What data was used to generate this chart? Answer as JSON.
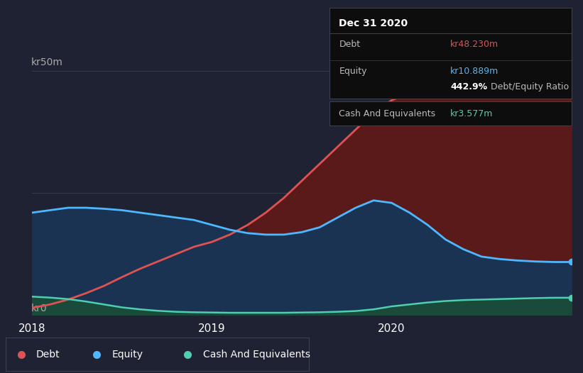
{
  "bg_color": "#1e2233",
  "grid_color": "#353a50",
  "tooltip_bg": "#0d0d0d",
  "tooltip_border": "#3a3f55",
  "legend_border": "#3a3f55",
  "ylabel_50": "kr50m",
  "ylabel_0": "kr0",
  "x_ticks_labels": [
    "2018",
    "2019",
    "2020"
  ],
  "x_ticks_pos": [
    0,
    1,
    2
  ],
  "debt_color": "#e05252",
  "equity_color": "#4db8ff",
  "cash_color": "#4dcfb0",
  "debt_fill": "#5a1a1a",
  "equity_fill": "#1a3352",
  "cash_fill": "#1a4a3a",
  "tooltip_title": "Dec 31 2020",
  "tooltip_debt_label": "Debt",
  "tooltip_debt_val": "kr48.230m",
  "tooltip_equity_label": "Equity",
  "tooltip_equity_val": "kr10.889m",
  "tooltip_ratio_pct": "442.9%",
  "tooltip_ratio_label": "Debt/Equity Ratio",
  "tooltip_cash_label": "Cash And Equivalents",
  "tooltip_cash_val": "kr3.577m",
  "legend_debt": "Debt",
  "legend_equity": "Equity",
  "legend_cash": "Cash And Equivalents",
  "x_data": [
    0.0,
    0.1,
    0.2,
    0.3,
    0.4,
    0.5,
    0.6,
    0.7,
    0.8,
    0.9,
    1.0,
    1.1,
    1.2,
    1.3,
    1.4,
    1.5,
    1.6,
    1.7,
    1.8,
    1.9,
    2.0,
    2.1,
    2.2,
    2.3,
    2.4,
    2.5,
    2.6,
    2.7,
    2.8,
    2.9,
    3.0
  ],
  "debt_data": [
    1.5,
    2.2,
    3.2,
    4.5,
    6.0,
    7.8,
    9.5,
    11.0,
    12.5,
    14.0,
    15.0,
    16.5,
    18.5,
    21.0,
    24.0,
    27.5,
    31.0,
    34.5,
    38.0,
    41.5,
    44.0,
    45.5,
    46.5,
    47.2,
    47.7,
    48.0,
    48.1,
    48.15,
    48.2,
    48.23,
    48.23
  ],
  "equity_data": [
    21.0,
    21.5,
    22.0,
    22.0,
    21.8,
    21.5,
    21.0,
    20.5,
    20.0,
    19.5,
    18.5,
    17.5,
    16.8,
    16.5,
    16.5,
    17.0,
    18.0,
    20.0,
    22.0,
    23.5,
    23.0,
    21.0,
    18.5,
    15.5,
    13.5,
    12.0,
    11.5,
    11.2,
    11.0,
    10.89,
    10.889
  ],
  "cash_data": [
    3.8,
    3.6,
    3.3,
    2.8,
    2.2,
    1.6,
    1.2,
    0.9,
    0.7,
    0.6,
    0.55,
    0.5,
    0.5,
    0.5,
    0.5,
    0.55,
    0.6,
    0.7,
    0.85,
    1.2,
    1.8,
    2.2,
    2.6,
    2.9,
    3.1,
    3.2,
    3.3,
    3.4,
    3.5,
    3.57,
    3.577
  ],
  "ylim_max": 55,
  "xlim_min": 0,
  "xlim_max": 3.0
}
